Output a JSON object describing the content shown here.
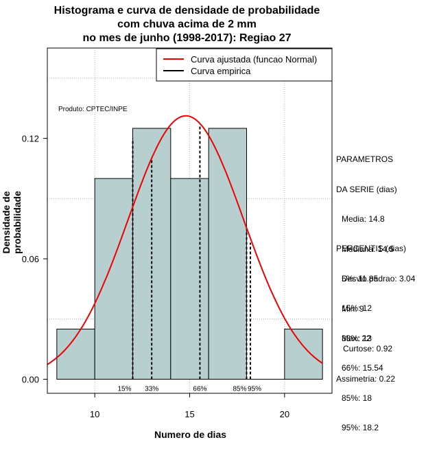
{
  "title_lines": [
    "Histograma e curva de densidade de probabilidade",
    "com chuva acima de 2 mm",
    "no mes de junho (1998-2017): Regiao 27"
  ],
  "product_label": "Produto: CPTEC/INPE",
  "params_block": {
    "title_lines": [
      "PARAMETROS",
      "DA SERIE (dias)"
    ],
    "items": [
      "Media: 14.8",
      "Mediana: 14.5",
      "Desvio padrao: 3.04",
      "Min: 9",
      "Max: 22"
    ]
  },
  "percentis_block": {
    "title": "PERCENTIS (dias)",
    "items": [
      "5%: 11.85",
      "15%: 12",
      "33%: 13",
      "66%: 15.54",
      "85%: 18",
      "95%: 18.2"
    ]
  },
  "extra_block": {
    "items": [
      "Curtose: 0.92",
      "Assimetria: 0.22"
    ]
  },
  "colors": {
    "bar_fill": "#b8cfcf",
    "curve": "#ee0000",
    "empirical": "#000000",
    "grid": "#b0b0b0"
  },
  "chart_data": {
    "type": "bar",
    "xlabel": "Numero de dias",
    "ylabel": "Densidade de probabilidade",
    "xlim": [
      7.5,
      22.5
    ],
    "ylim": [
      -0.007,
      0.165
    ],
    "xticks": [
      10,
      15,
      20
    ],
    "yticks": [
      0.0,
      0.06,
      0.12
    ],
    "ytick_labels": [
      "0.00",
      "0.06",
      "0.12"
    ],
    "grid": true,
    "legend_position": "top-right",
    "legend": [
      {
        "name": "Curva ajustada (funcao Normal)",
        "color": "#ee0000"
      },
      {
        "name": "Curva empirica",
        "color": "#000000"
      }
    ],
    "histogram": {
      "bin_edges": [
        8,
        10,
        12,
        14,
        16,
        18,
        20,
        22
      ],
      "density": [
        0.025,
        0.1,
        0.125,
        0.1,
        0.125,
        0,
        0.025
      ]
    },
    "normal_fit": {
      "mean": 14.8,
      "sd": 3.04
    },
    "percentile_lines": [
      {
        "label": "15%",
        "x": 12,
        "y": 0.12
      },
      {
        "label": "33%",
        "x": 13,
        "y": 0.11
      },
      {
        "label": "66%",
        "x": 15.54,
        "y": 0.127
      },
      {
        "label": "85%",
        "x": 18,
        "y": 0.075
      },
      {
        "label": "95%",
        "x": 18.2,
        "y": 0.068
      }
    ]
  }
}
